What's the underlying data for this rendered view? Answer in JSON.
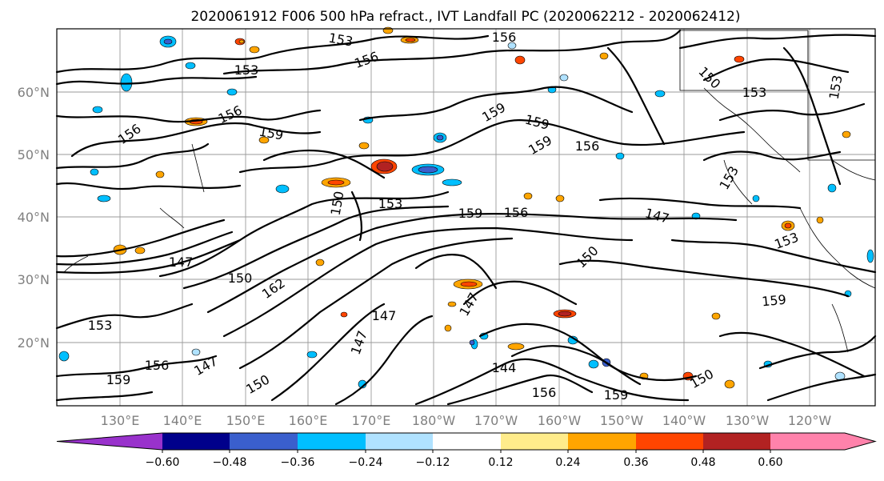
{
  "title": "2020061912 F006 500 hPa refract., IVT Landfall PC (2020062212 - 2020062412)",
  "lat_labels": [
    "60°N",
    "50°N",
    "40°N",
    "30°N",
    "20°N"
  ],
  "lon_labels": [
    "130°E",
    "140°E",
    "150°E",
    "160°E",
    "170°E",
    "180°W",
    "170°W",
    "160°W",
    "150°W",
    "140°W",
    "130°W",
    "120°W"
  ],
  "contour_labels": [
    "153",
    "156",
    "153",
    "156",
    "159",
    "156",
    "156",
    "159",
    "159",
    "159",
    "156",
    "153",
    "153",
    "150",
    "153",
    "159",
    "156",
    "150",
    "147",
    "150",
    "162",
    "150",
    "147",
    "153",
    "159",
    "147",
    "147",
    "147",
    "144",
    "147",
    "150",
    "153",
    "159",
    "156",
    "150",
    "156",
    "159",
    "153"
  ],
  "colorbar": {
    "ticks": [
      "−0.60",
      "−0.48",
      "−0.36",
      "−0.24",
      "−0.12",
      "0.12",
      "0.24",
      "0.36",
      "0.48",
      "0.60"
    ],
    "colors": [
      "#9932cc",
      "#00008b",
      "#3a5fcd",
      "#00bfff",
      "#b0e2ff",
      "#ffffff",
      "#ffec8b",
      "#ffa500",
      "#ff4500",
      "#b22222",
      "#ff82ab"
    ]
  }
}
